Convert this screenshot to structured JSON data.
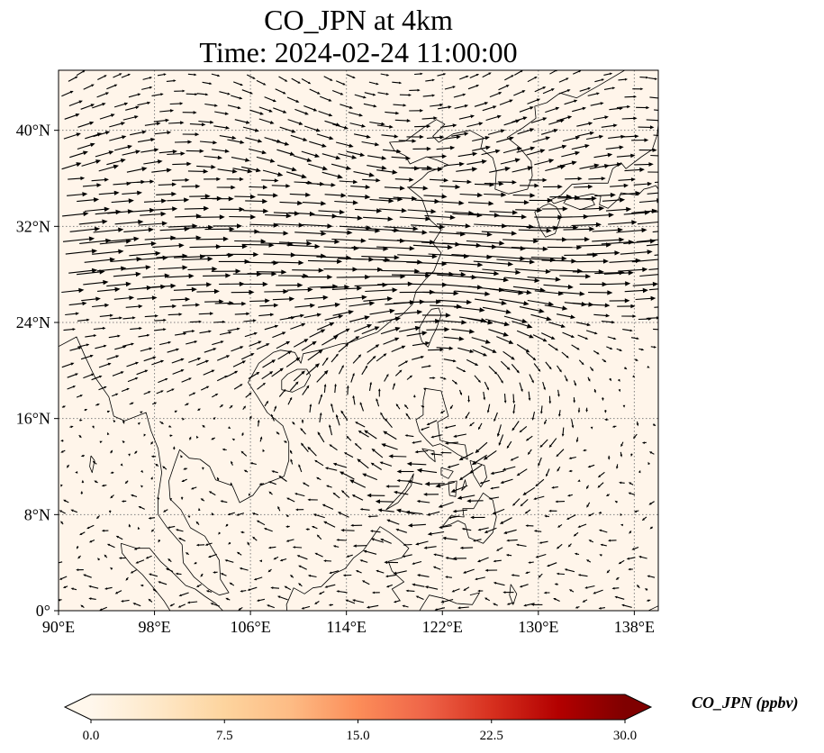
{
  "title_line1": "CO_JPN at 4km",
  "title_line2": "Time: 2024-02-24 11:00:00",
  "map": {
    "lon_range": [
      90,
      140
    ],
    "lat_range": [
      0,
      45
    ],
    "background_color": "#fff5ea",
    "gridline_style": "dotted",
    "gridline_color": "#808080",
    "lon_ticks": [
      {
        "value": 90,
        "label": "90°E"
      },
      {
        "value": 98,
        "label": "98°E"
      },
      {
        "value": 106,
        "label": "106°E"
      },
      {
        "value": 114,
        "label": "114°E"
      },
      {
        "value": 122,
        "label": "122°E"
      },
      {
        "value": 130,
        "label": "130°E"
      },
      {
        "value": 138,
        "label": "138°E"
      }
    ],
    "lat_ticks": [
      {
        "value": 0,
        "label": "0°"
      },
      {
        "value": 8,
        "label": "8°N"
      },
      {
        "value": 16,
        "label": "16°N"
      },
      {
        "value": 24,
        "label": "24°N"
      },
      {
        "value": 32,
        "label": "32°N"
      },
      {
        "value": 40,
        "label": "40°N"
      }
    ],
    "vector_color": "#000000"
  },
  "colorbar": {
    "label": "CO_JPN (ppbv)",
    "min": 0,
    "max": 30,
    "extend": "both",
    "colormap": "OrRd",
    "colors": [
      "#fff7ec",
      "#fee8c8",
      "#fdd49e",
      "#fdbb84",
      "#fc8d59",
      "#ef6548",
      "#d7301f",
      "#b30000",
      "#7f0000"
    ],
    "ticks": [
      {
        "value": 0,
        "label": "0.0"
      },
      {
        "value": 7.5,
        "label": "7.5"
      },
      {
        "value": 15,
        "label": "15.0"
      },
      {
        "value": 22.5,
        "label": "22.5"
      },
      {
        "value": 30,
        "label": "30.0"
      }
    ]
  }
}
